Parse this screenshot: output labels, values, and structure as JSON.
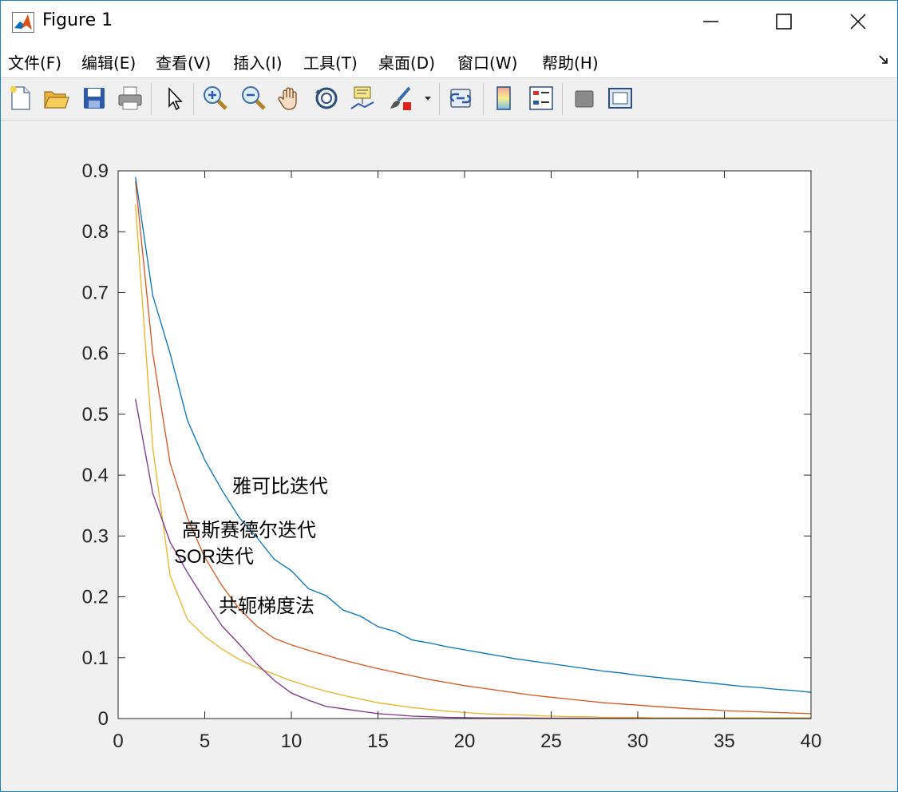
{
  "window": {
    "title": "Figure 1"
  },
  "menubar": {
    "items": [
      "文件(F)",
      "编辑(E)",
      "查看(V)",
      "插入(I)",
      "工具(T)",
      "桌面(D)",
      "窗口(W)",
      "帮助(H)"
    ]
  },
  "toolbar": {
    "buttons": [
      "new-figure-icon",
      "open-file-icon",
      "save-icon",
      "print-icon",
      "pointer-icon",
      "zoom-in-icon",
      "zoom-out-icon",
      "pan-hand-icon",
      "rotate-3d-icon",
      "data-cursor-icon",
      "brush-icon",
      "link-plot-icon",
      "colorbar-icon",
      "legend-icon",
      "hide-plot-tools-icon",
      "show-plot-tools-icon"
    ]
  },
  "colors": {
    "jacobi": "#0072bd",
    "gauss_seidel": "#d95319",
    "sor": "#edb120",
    "cg": "#7e2f8e"
  },
  "chart_data": {
    "type": "line",
    "title": "",
    "xlabel": "",
    "ylabel": "",
    "xlim": [
      0,
      40
    ],
    "ylim": [
      0,
      0.9
    ],
    "xticks": [
      "0",
      "5",
      "10",
      "15",
      "20",
      "25",
      "30",
      "35",
      "40"
    ],
    "yticks": [
      "0",
      "0.1",
      "0.2",
      "0.3",
      "0.4",
      "0.5",
      "0.6",
      "0.7",
      "0.8",
      "0.9"
    ],
    "grid": false,
    "x": [
      1,
      2,
      3,
      4,
      5,
      6,
      7,
      8,
      9,
      10,
      11,
      12,
      13,
      14,
      15,
      16,
      17,
      18,
      19,
      20,
      21,
      22,
      23,
      24,
      25,
      26,
      27,
      28,
      29,
      30,
      31,
      32,
      33,
      34,
      35,
      36,
      37,
      38,
      39,
      40
    ],
    "series": [
      {
        "values": [
          0.89,
          0.695,
          0.6,
          0.49,
          0.425,
          0.375,
          0.33,
          0.298,
          0.262,
          0.243,
          0.213,
          0.202,
          0.178,
          0.168,
          0.151,
          0.143,
          0.129,
          0.124,
          0.118,
          0.113,
          0.108,
          0.103,
          0.098,
          0.094,
          0.09,
          0.086,
          0.082,
          0.078,
          0.075,
          0.071,
          0.068,
          0.065,
          0.062,
          0.059,
          0.056,
          0.053,
          0.051,
          0.048,
          0.046,
          0.043
        ]
      },
      {
        "values": [
          0.883,
          0.6,
          0.42,
          0.33,
          0.265,
          0.218,
          0.18,
          0.152,
          0.132,
          0.121,
          0.112,
          0.104,
          0.096,
          0.089,
          0.082,
          0.076,
          0.07,
          0.064,
          0.059,
          0.054,
          0.05,
          0.046,
          0.042,
          0.038,
          0.035,
          0.032,
          0.029,
          0.026,
          0.024,
          0.022,
          0.02,
          0.018,
          0.016,
          0.015,
          0.013,
          0.012,
          0.011,
          0.01,
          0.009,
          0.008
        ]
      },
      {
        "values": [
          0.845,
          0.445,
          0.235,
          0.163,
          0.135,
          0.114,
          0.097,
          0.084,
          0.073,
          0.062,
          0.053,
          0.045,
          0.038,
          0.032,
          0.026,
          0.022,
          0.018,
          0.015,
          0.012,
          0.01,
          0.008,
          0.007,
          0.006,
          0.005,
          0.004,
          0.003,
          0.003,
          0.002,
          0.002,
          0.002,
          0.001,
          0.001,
          0.001,
          0.001,
          0.001,
          0.001,
          0.001,
          0.001,
          0.001,
          0.001
        ]
      },
      {
        "values": [
          0.525,
          0.37,
          0.29,
          0.24,
          0.195,
          0.152,
          0.122,
          0.09,
          0.063,
          0.042,
          0.03,
          0.02,
          0.016,
          0.012,
          0.008,
          0.006,
          0.004,
          0.003,
          0.002,
          0.0015,
          0.001,
          0.001,
          0.001,
          0.0008,
          0.0006,
          0.0005,
          0.0004,
          0.0003,
          0.0002,
          0.0002,
          0.0001,
          0.0001,
          0.0001,
          0.0001,
          0.0,
          0.0,
          0.0,
          0.0,
          0.0,
          0.0
        ]
      }
    ],
    "annotations": [
      "雅可比迭代",
      "高斯赛德尔迭代",
      "SOR迭代",
      "共轭梯度法"
    ]
  }
}
